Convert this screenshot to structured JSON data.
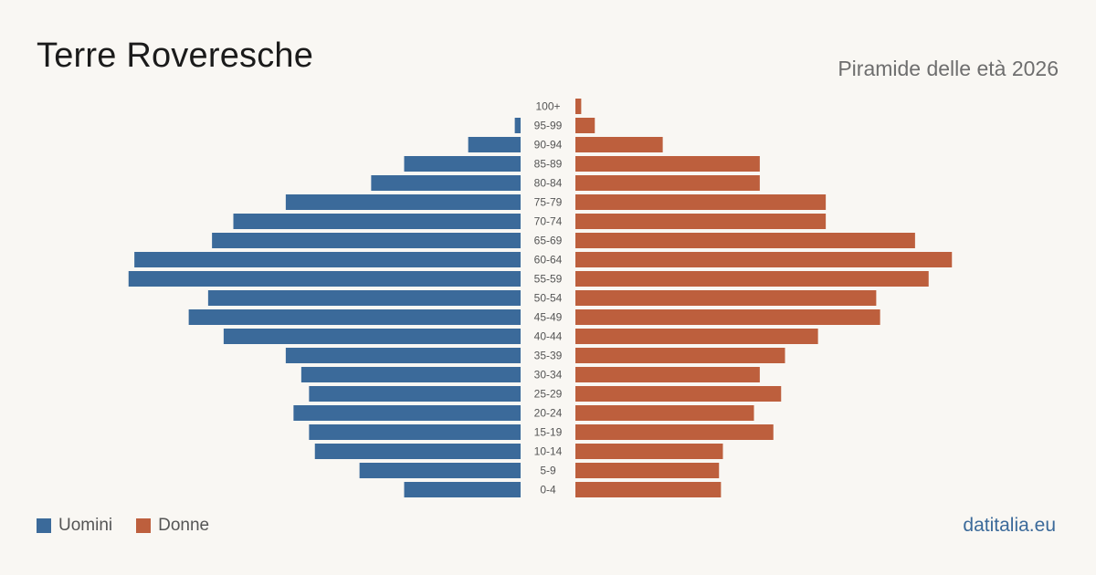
{
  "header": {
    "title": "Terre  Roveresche",
    "subtitle": "Piramide delle età 2026"
  },
  "legend": {
    "men_label": "Uomini",
    "women_label": "Donne"
  },
  "brand": "datitalia.eu",
  "colors": {
    "men": "#3b6a9a",
    "women": "#bd5f3d",
    "background": "#f9f7f3",
    "tick_text": "#555555"
  },
  "chart_data": {
    "type": "bar",
    "orientation": "horizontal-pyramid",
    "categories": [
      "100+",
      "95-99",
      "90-94",
      "85-89",
      "80-84",
      "75-79",
      "70-74",
      "65-69",
      "60-64",
      "55-59",
      "50-54",
      "45-49",
      "40-44",
      "35-39",
      "30-34",
      "25-29",
      "20-24",
      "15-19",
      "10-14",
      "5-9",
      "0-4"
    ],
    "series": [
      {
        "name": "Uomini",
        "values": [
          0,
          3,
          27,
          60,
          77,
          121,
          148,
          159,
          199,
          202,
          161,
          171,
          153,
          121,
          113,
          109,
          117,
          109,
          106,
          83,
          60
        ]
      },
      {
        "name": "Donne",
        "values": [
          3,
          10,
          45,
          95,
          95,
          129,
          129,
          175,
          194,
          182,
          155,
          157,
          125,
          108,
          95,
          106,
          92,
          102,
          76,
          74,
          75
        ]
      }
    ]
  }
}
